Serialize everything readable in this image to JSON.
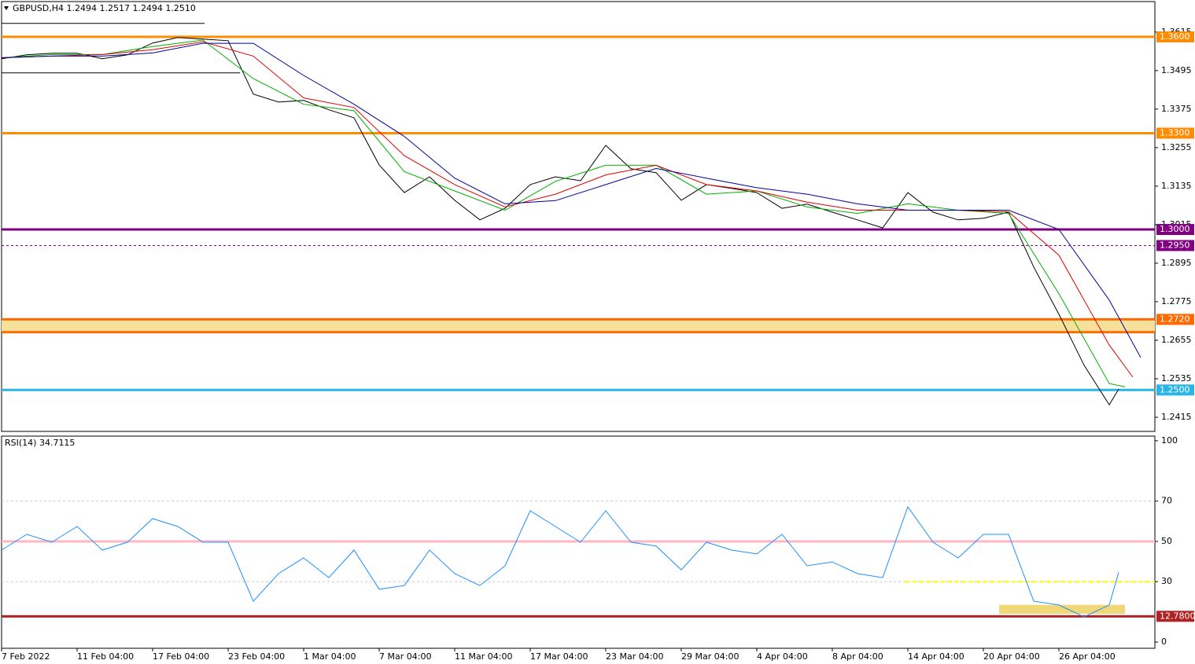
{
  "chart_data": [
    {
      "type": "line",
      "title": "GBPUSD,H4  1.2494 1.2517 1.2494 1.2510",
      "xlim": [
        0,
        366.5
      ],
      "ylim": [
        1.2371,
        1.371
      ],
      "yticks": [
        1.2415,
        1.2535,
        1.2655,
        1.2775,
        1.2895,
        1.3015,
        1.3135,
        1.3255,
        1.3375,
        1.3495,
        1.3615
      ],
      "series": [
        {
          "color": "#000000",
          "x": [
            0,
            8,
            16,
            24,
            32,
            40,
            48,
            56,
            64,
            72,
            80,
            88,
            96,
            104,
            112,
            120,
            128,
            136,
            144,
            152,
            160,
            168,
            176,
            184,
            192,
            200,
            208,
            216,
            224,
            232,
            240,
            248,
            256,
            264,
            272,
            280,
            288,
            296,
            304,
            312,
            320,
            328,
            336,
            344,
            352,
            355
          ],
          "values": [
            1.3532,
            1.3544,
            1.3549,
            1.3549,
            1.3532,
            1.3544,
            1.3581,
            1.3598,
            1.3593,
            1.3588,
            1.3422,
            1.3397,
            1.3402,
            1.3373,
            1.3348,
            1.3201,
            1.3115,
            1.3164,
            1.3091,
            1.303,
            1.3066,
            1.314,
            1.3164,
            1.3152,
            1.3262,
            1.3189,
            1.3177,
            1.3091,
            1.314,
            1.3128,
            1.3115,
            1.3066,
            1.3079,
            1.3054,
            1.303,
            1.3005,
            1.3115,
            1.3054,
            1.303,
            1.3035,
            1.3054,
            1.2883,
            1.2736,
            1.2577,
            1.2454,
            1.2503
          ]
        },
        {
          "color": "#00b000",
          "x": [
            0,
            16,
            32,
            48,
            64,
            80,
            96,
            112,
            128,
            144,
            160,
            176,
            192,
            208,
            224,
            240,
            256,
            272,
            288,
            304,
            320,
            336,
            352,
            357
          ],
          "values": [
            1.3535,
            1.3545,
            1.3545,
            1.357,
            1.359,
            1.347,
            1.339,
            1.337,
            1.318,
            1.312,
            1.306,
            1.315,
            1.32,
            1.32,
            1.311,
            1.312,
            1.307,
            1.305,
            1.308,
            1.306,
            1.305,
            1.28,
            1.252,
            1.251
          ]
        },
        {
          "color": "#e00000",
          "x": [
            0,
            16,
            32,
            48,
            64,
            80,
            96,
            112,
            128,
            144,
            160,
            176,
            192,
            208,
            224,
            240,
            256,
            272,
            288,
            304,
            320,
            336,
            352,
            359.5
          ],
          "values": [
            1.3535,
            1.354,
            1.3545,
            1.356,
            1.3585,
            1.354,
            1.341,
            1.338,
            1.323,
            1.314,
            1.307,
            1.311,
            1.317,
            1.32,
            1.314,
            1.312,
            1.3085,
            1.306,
            1.306,
            1.306,
            1.3055,
            1.292,
            1.264,
            1.254
          ]
        },
        {
          "color": "#000099",
          "x": [
            0,
            16,
            32,
            48,
            64,
            80,
            96,
            112,
            128,
            144,
            160,
            176,
            192,
            208,
            224,
            240,
            256,
            272,
            288,
            304,
            320,
            336,
            352,
            362
          ],
          "values": [
            1.3535,
            1.354,
            1.354,
            1.355,
            1.358,
            1.358,
            1.348,
            1.339,
            1.329,
            1.316,
            1.308,
            1.309,
            1.314,
            1.319,
            1.316,
            1.313,
            1.311,
            1.308,
            1.306,
            1.306,
            1.306,
            1.3,
            1.278,
            1.2601
          ]
        }
      ],
      "zones": [
        {
          "y": [
            1.268,
            1.272
          ],
          "x": [
            0,
            366.5
          ],
          "fill": "#f7e09a"
        }
      ],
      "segments": [
        {
          "value": 1.3642,
          "x": [
            0,
            64.5
          ],
          "color": "#000000"
        },
        {
          "value": 1.3488,
          "x": [
            0,
            75.8
          ],
          "color": "#000000"
        }
      ],
      "levels": [
        {
          "value": 1.36,
          "label": "1.3600",
          "color": "#ff8c00"
        },
        {
          "value": 1.33,
          "label": "1.3300",
          "color": "#ff8c00"
        },
        {
          "value": 1.3,
          "label": "1.3000",
          "color": "#800080"
        },
        {
          "value": 1.295,
          "label": "1.2950",
          "color": "#800080",
          "style": "dashed"
        },
        {
          "value": 1.272,
          "label": "1.2720",
          "color": "#ff6a00"
        },
        {
          "value": 1.268,
          "color": "#ff6a00"
        },
        {
          "value": 1.25,
          "label": "1.2500",
          "color": "#29b6e6"
        }
      ]
    },
    {
      "type": "line",
      "title": "RSI(14) 34.7115",
      "xlim": [
        0,
        366.5
      ],
      "ylim": [
        -3.1,
        102.3
      ],
      "yticks": [
        0,
        30,
        50,
        70,
        100
      ],
      "xticks": [
        {
          "value": 0,
          "label": "7 Feb 2022"
        },
        {
          "value": 24,
          "label": "11 Feb 04:00"
        },
        {
          "value": 48,
          "label": "17 Feb 04:00"
        },
        {
          "value": 72,
          "label": "23 Feb 04:00"
        },
        {
          "value": 96,
          "label": "1 Mar 04:00"
        },
        {
          "value": 120,
          "label": "7 Mar 04:00"
        },
        {
          "value": 144,
          "label": "11 Mar 04:00"
        },
        {
          "value": 168,
          "label": "17 Mar 04:00"
        },
        {
          "value": 192,
          "label": "23 Mar 04:00"
        },
        {
          "value": 216,
          "label": "29 Mar 04:00"
        },
        {
          "value": 240,
          "label": "4 Apr 04:00"
        },
        {
          "value": 264,
          "label": "8 Apr 04:00"
        },
        {
          "value": 288,
          "label": "14 Apr 04:00"
        },
        {
          "value": 312,
          "label": "20 Apr 04:00"
        },
        {
          "value": 336,
          "label": "26 Apr 04:00"
        }
      ],
      "series": [
        {
          "color": "#1e90ff",
          "x": [
            0,
            8,
            16,
            24,
            32,
            40,
            48,
            56,
            64,
            72,
            80,
            88,
            96,
            104,
            112,
            120,
            128,
            136,
            144,
            152,
            160,
            168,
            176,
            184,
            192,
            200,
            208,
            216,
            224,
            232,
            240,
            248,
            256,
            264,
            272,
            280,
            288,
            296,
            304,
            312,
            320,
            328,
            336,
            344,
            352,
            355
          ],
          "values": [
            45.7,
            53.5,
            49.6,
            57.4,
            45.7,
            49.6,
            61.3,
            57.4,
            49.6,
            49.6,
            20.3,
            34,
            41.8,
            32,
            45.7,
            26.2,
            28.1,
            45.7,
            34,
            28.1,
            37.9,
            65.2,
            57.4,
            49.6,
            65.2,
            49.6,
            47.7,
            35.9,
            49.6,
            45.7,
            43.8,
            53.5,
            37.9,
            39.8,
            34,
            32,
            67.2,
            49.6,
            41.8,
            53.5,
            53.5,
            20.3,
            18.4,
            12.5,
            18.4,
            34.7
          ]
        }
      ],
      "zones": [
        {
          "y": [
            14,
            18.5
          ],
          "x": [
            317,
            357
          ],
          "fill": "#f0d878"
        }
      ],
      "segments": [
        {
          "value": 30,
          "x": [
            287,
            366.5
          ],
          "color": "#ffff00",
          "style": "dashed"
        }
      ],
      "levels": [
        {
          "value": 70,
          "color": "#c8c8c8",
          "style": "dashed"
        },
        {
          "value": 50,
          "color": "#ffb6c1"
        },
        {
          "value": 30,
          "color": "#c8c8c8",
          "style": "dashed"
        },
        {
          "value": 12.78,
          "label": "12.7800",
          "color": "#b22222"
        }
      ]
    }
  ]
}
